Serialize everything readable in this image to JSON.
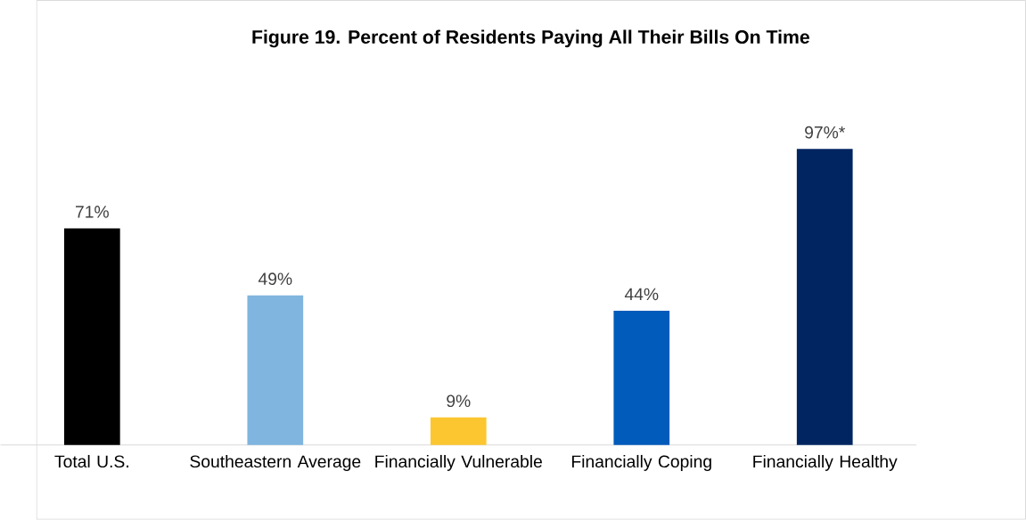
{
  "chart_data": {
    "type": "bar",
    "title": "Figure 19. Percent of Residents Paying All Their Bills On Time",
    "categories": [
      "Total U.S.",
      "Southeastern Average",
      "Financially Vulnerable",
      "Financially Coping",
      "Financially Healthy"
    ],
    "values": [
      71,
      49,
      9,
      44,
      97
    ],
    "colors": [
      "#000000",
      "#7fb5de",
      "#fcc630",
      "#005bbb",
      "#002561"
    ],
    "value_labels": [
      "71%",
      "49%",
      "9%",
      "44%",
      "97%*"
    ]
  }
}
